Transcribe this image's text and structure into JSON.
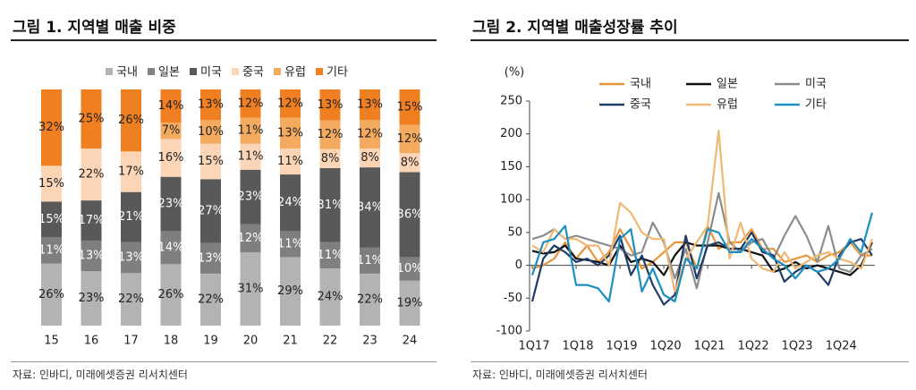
{
  "panel1": {
    "title": "그림 1. 지역별 매출 비중",
    "source": "자료: 인바디, 미래에셋증권 리서치센터"
  },
  "panel2": {
    "title": "그림 2. 지역별 매출성장률 추이",
    "source": "자료: 인바디, 미래에셋증권 리서치센터"
  },
  "chart_data": [
    {
      "type": "bar",
      "stacked": true,
      "categories": [
        "15",
        "16",
        "17",
        "18",
        "19",
        "20",
        "21",
        "22",
        "23",
        "24"
      ],
      "series": [
        {
          "name": "국내",
          "color": "#b3b3b3",
          "values": [
            26,
            23,
            22,
            26,
            22,
            31,
            29,
            24,
            22,
            19
          ]
        },
        {
          "name": "일본",
          "color": "#7f7f7f",
          "values": [
            11,
            13,
            13,
            14,
            13,
            12,
            11,
            11,
            11,
            10
          ]
        },
        {
          "name": "미국",
          "color": "#595959",
          "values": [
            15,
            17,
            21,
            23,
            27,
            23,
            24,
            31,
            34,
            36
          ]
        },
        {
          "name": "중국",
          "color": "#fbd5b5",
          "values": [
            15,
            22,
            17,
            16,
            15,
            11,
            11,
            8,
            8,
            8
          ]
        },
        {
          "name": "유럽",
          "color": "#f5ab5f",
          "values": [
            0,
            0,
            0,
            7,
            10,
            11,
            13,
            12,
            12,
            12
          ]
        },
        {
          "name": "기타",
          "color": "#f07f22",
          "values": [
            32,
            25,
            26,
            14,
            13,
            12,
            12,
            13,
            13,
            15
          ]
        }
      ],
      "data_labels": [
        [
          "26%",
          "23%",
          "22%",
          "26%",
          "22%",
          "31%",
          "29%",
          "24%",
          "22%",
          "19%"
        ],
        [
          "11%",
          "13%",
          "13%",
          "14%",
          "13%",
          "12%",
          "11%",
          "11%",
          "11%",
          "10%"
        ],
        [
          "15%",
          "17%",
          "21%",
          "23%",
          "27%",
          "23%",
          "24%",
          "31%",
          "34%",
          "36%"
        ],
        [
          "15%",
          "22%",
          "17%",
          "16%",
          "15%",
          "11%",
          "11%",
          "8%",
          "8%",
          "8%"
        ],
        [
          "",
          "",
          "",
          "7%",
          "10%",
          "11%",
          "13%",
          "12%",
          "12%",
          "12%"
        ],
        [
          "32%",
          "25%",
          "26%",
          "14%",
          "13%",
          "12%",
          "12%",
          "13%",
          "13%",
          "15%"
        ]
      ],
      "legend_position": "top",
      "ylim": [
        0,
        100
      ]
    },
    {
      "type": "line",
      "ylabel": "(%)",
      "ylim": [
        -100,
        250
      ],
      "yticks": [
        -100,
        -50,
        0,
        50,
        100,
        150,
        200,
        250
      ],
      "xticks": [
        "1Q17",
        "1Q18",
        "1Q19",
        "1Q20",
        "1Q21",
        "1Q22",
        "1Q23",
        "1Q24"
      ],
      "n_points": 32,
      "legend_position": "top",
      "series": [
        {
          "name": "국내",
          "color": "#e8953d",
          "values": [
            -5,
            0,
            10,
            35,
            10,
            30,
            5,
            20,
            55,
            25,
            -5,
            5,
            20,
            35,
            35,
            -5,
            60,
            25,
            35,
            35,
            55,
            25,
            25,
            5,
            10,
            15,
            5,
            15,
            20,
            35,
            15,
            15
          ]
        },
        {
          "name": "일본",
          "color": "#111111",
          "values": [
            22,
            18,
            20,
            30,
            10,
            8,
            5,
            0,
            30,
            5,
            10,
            5,
            -15,
            15,
            35,
            30,
            30,
            30,
            25,
            25,
            20,
            15,
            -10,
            -5,
            5,
            -5,
            0,
            -5,
            -10,
            -15,
            0,
            35
          ]
        },
        {
          "name": "미국",
          "color": "#8c8c8c",
          "values": [
            40,
            45,
            55,
            40,
            45,
            40,
            35,
            30,
            25,
            15,
            20,
            65,
            35,
            -20,
            25,
            -35,
            35,
            110,
            35,
            20,
            35,
            40,
            10,
            45,
            75,
            45,
            5,
            60,
            -5,
            -10,
            15,
            25
          ]
        },
        {
          "name": "중국",
          "color": "#1f3d66",
          "values": [
            -55,
            10,
            30,
            20,
            5,
            10,
            0,
            15,
            45,
            -15,
            15,
            -30,
            -60,
            -45,
            45,
            -20,
            30,
            35,
            25,
            25,
            50,
            20,
            15,
            -25,
            -10,
            0,
            -10,
            -30,
            15,
            35,
            40,
            15
          ]
        },
        {
          "name": "유럽",
          "color": "#f0b873",
          "values": [
            30,
            20,
            55,
            40,
            40,
            30,
            30,
            0,
            95,
            80,
            50,
            40,
            40,
            -40,
            10,
            35,
            60,
            205,
            10,
            65,
            10,
            -5,
            -10,
            20,
            -5,
            5,
            15,
            20,
            10,
            5,
            -5,
            40
          ]
        },
        {
          "name": "기타",
          "color": "#1b8fbf",
          "values": [
            -15,
            35,
            40,
            60,
            -30,
            -30,
            -35,
            -55,
            40,
            55,
            -40,
            -5,
            -45,
            -55,
            10,
            -5,
            55,
            50,
            20,
            20,
            40,
            25,
            10,
            0,
            -20,
            0,
            -10,
            -5,
            10,
            40,
            20,
            80
          ]
        }
      ]
    }
  ]
}
